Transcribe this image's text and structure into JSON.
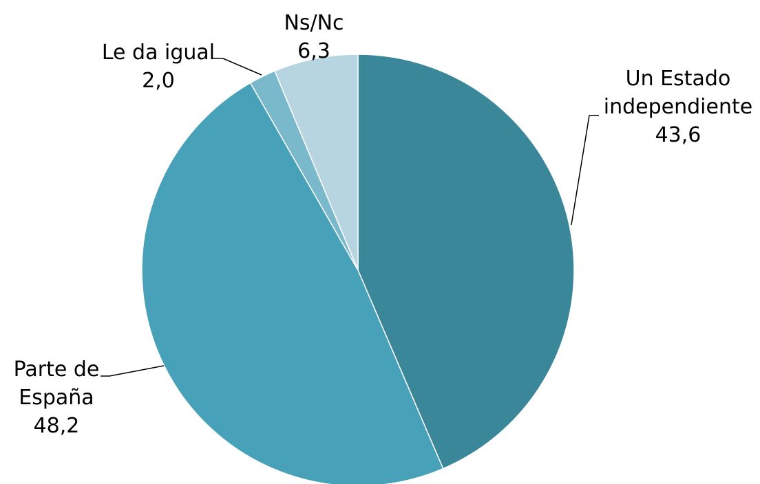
{
  "chart_data": {
    "type": "pie",
    "title": "",
    "slices": [
      {
        "label_lines": [
          "Un Estado",
          "independiente"
        ],
        "value": 43.6,
        "value_text": "43,6",
        "color": "#3a879a"
      },
      {
        "label_lines": [
          "Parte de",
          "España"
        ],
        "value": 48.2,
        "value_text": "48,2",
        "color": "#47a1b8"
      },
      {
        "label_lines": [
          "Le da igual"
        ],
        "value": 2.0,
        "value_text": "2,0",
        "color": "#7ab8cc"
      },
      {
        "label_lines": [
          "Ns/Nc"
        ],
        "value": 6.3,
        "value_text": "6,3",
        "color": "#b7d5e0"
      }
    ],
    "start": "12 o'clock",
    "direction": "clockwise",
    "legend": "none"
  }
}
